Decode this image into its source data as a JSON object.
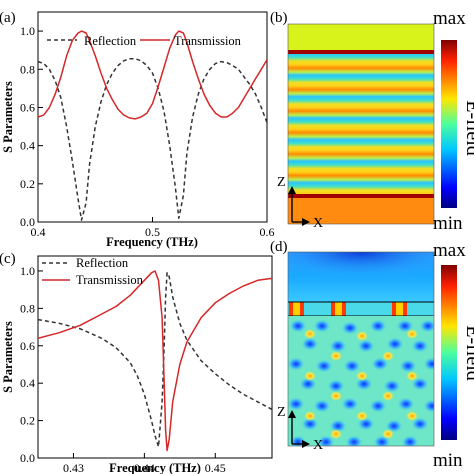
{
  "panels": {
    "a": "(a)",
    "b": "(b)",
    "c": "(c)",
    "d": "(d)"
  },
  "colorbar": {
    "max_label": "max",
    "min_label": "min",
    "title": "E-field"
  },
  "field_axes": {
    "z": "Z",
    "x": "X"
  },
  "colors": {
    "transmission": "#d62728",
    "reflection": "#333333"
  },
  "chart_data": [
    {
      "type": "line",
      "panel": "(a)",
      "xlabel": "Frequency (THz)",
      "ylabel": "S Parameters",
      "xlim": [
        0.4,
        0.6
      ],
      "ylim": [
        0,
        1.1
      ],
      "xticks": [
        "0.4",
        "0.5",
        "0.6"
      ],
      "yticks": [
        "0.0",
        "0.2",
        "0.4",
        "0.6",
        "0.8",
        "1.0"
      ],
      "legend_position": "top",
      "series": [
        {
          "name": "Reflection",
          "style": "dashed",
          "x": [
            0.4,
            0.405,
            0.41,
            0.415,
            0.42,
            0.425,
            0.43,
            0.435,
            0.438,
            0.442,
            0.445,
            0.45,
            0.455,
            0.46,
            0.465,
            0.47,
            0.475,
            0.48,
            0.485,
            0.49,
            0.495,
            0.5,
            0.505,
            0.51,
            0.515,
            0.52,
            0.523,
            0.527,
            0.53,
            0.535,
            0.54,
            0.545,
            0.55,
            0.555,
            0.56,
            0.565,
            0.57,
            0.575,
            0.58,
            0.585,
            0.59,
            0.595,
            0.6
          ],
          "y": [
            0.84,
            0.83,
            0.8,
            0.74,
            0.65,
            0.5,
            0.32,
            0.12,
            0.01,
            0.1,
            0.3,
            0.5,
            0.63,
            0.72,
            0.78,
            0.82,
            0.845,
            0.855,
            0.855,
            0.845,
            0.82,
            0.78,
            0.7,
            0.58,
            0.4,
            0.18,
            0.02,
            0.14,
            0.36,
            0.55,
            0.67,
            0.75,
            0.8,
            0.83,
            0.84,
            0.835,
            0.82,
            0.8,
            0.76,
            0.72,
            0.67,
            0.6,
            0.52
          ]
        },
        {
          "name": "Transmission",
          "style": "solid",
          "x": [
            0.4,
            0.405,
            0.41,
            0.415,
            0.42,
            0.425,
            0.43,
            0.435,
            0.438,
            0.442,
            0.445,
            0.45,
            0.455,
            0.46,
            0.465,
            0.47,
            0.475,
            0.48,
            0.485,
            0.49,
            0.495,
            0.5,
            0.505,
            0.51,
            0.515,
            0.52,
            0.523,
            0.527,
            0.53,
            0.535,
            0.54,
            0.545,
            0.55,
            0.555,
            0.56,
            0.565,
            0.57,
            0.575,
            0.58,
            0.585,
            0.59,
            0.595,
            0.6
          ],
          "y": [
            0.55,
            0.56,
            0.6,
            0.67,
            0.76,
            0.87,
            0.95,
            0.99,
            1.0,
            0.99,
            0.95,
            0.87,
            0.78,
            0.7,
            0.64,
            0.59,
            0.56,
            0.545,
            0.54,
            0.55,
            0.57,
            0.62,
            0.71,
            0.81,
            0.91,
            0.98,
            1.0,
            0.99,
            0.94,
            0.84,
            0.75,
            0.67,
            0.61,
            0.57,
            0.55,
            0.55,
            0.57,
            0.6,
            0.65,
            0.7,
            0.75,
            0.8,
            0.85
          ]
        }
      ]
    },
    {
      "type": "line",
      "panel": "(c)",
      "xlabel": "Frequency (THz)",
      "ylabel": "S Parameters",
      "xlim": [
        0.425,
        0.458
      ],
      "ylim": [
        0,
        1.08
      ],
      "xticks": [
        "0.43",
        "0.44",
        "0.45"
      ],
      "yticks": [
        "0.0",
        "0.2",
        "0.4",
        "0.6",
        "0.8",
        "1.0"
      ],
      "legend_position": "top-left",
      "series": [
        {
          "name": "Reflection",
          "style": "dashed",
          "x": [
            0.425,
            0.428,
            0.431,
            0.434,
            0.436,
            0.438,
            0.439,
            0.44,
            0.441,
            0.4415,
            0.442,
            0.4425,
            0.4428,
            0.443,
            0.4432,
            0.4435,
            0.444,
            0.445,
            0.446,
            0.448,
            0.45,
            0.452,
            0.454,
            0.456,
            0.458
          ],
          "y": [
            0.74,
            0.72,
            0.69,
            0.64,
            0.59,
            0.51,
            0.44,
            0.34,
            0.2,
            0.12,
            0.06,
            0.3,
            0.6,
            0.86,
            0.99,
            0.97,
            0.86,
            0.72,
            0.63,
            0.52,
            0.45,
            0.39,
            0.34,
            0.3,
            0.26
          ]
        },
        {
          "name": "Transmission",
          "style": "solid",
          "x": [
            0.425,
            0.428,
            0.431,
            0.434,
            0.436,
            0.438,
            0.439,
            0.44,
            0.441,
            0.4415,
            0.442,
            0.4425,
            0.4428,
            0.443,
            0.4432,
            0.4435,
            0.444,
            0.445,
            0.446,
            0.448,
            0.45,
            0.452,
            0.454,
            0.456,
            0.458
          ],
          "y": [
            0.64,
            0.67,
            0.71,
            0.77,
            0.81,
            0.87,
            0.91,
            0.95,
            0.99,
            1.0,
            0.95,
            0.75,
            0.4,
            0.15,
            0.04,
            0.1,
            0.3,
            0.5,
            0.62,
            0.75,
            0.83,
            0.88,
            0.92,
            0.95,
            0.96
          ]
        }
      ]
    }
  ]
}
